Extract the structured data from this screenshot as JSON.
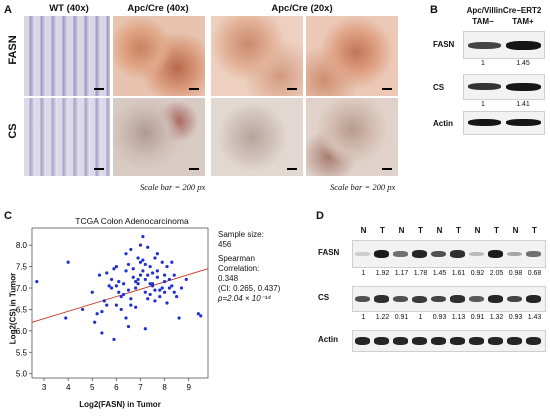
{
  "panel_a": {
    "letter": "A",
    "headers": [
      "WT (40x)",
      "Apc/Cre (40x)",
      "Apc/Cre (20x)"
    ],
    "rows": [
      "FASN",
      "CS"
    ],
    "scale_bar_label": "Scale bar = 200 px"
  },
  "panel_b": {
    "letter": "B",
    "title": "Apc/VillinCre−ERT2",
    "lanes": [
      "TAM−",
      "TAM+"
    ],
    "blots": [
      {
        "label": "FASN",
        "values": [
          "1",
          "1.45"
        ]
      },
      {
        "label": "CS",
        "values": [
          "1",
          "1.41"
        ]
      },
      {
        "label": "Actin",
        "values": []
      }
    ]
  },
  "panel_c": {
    "letter": "C",
    "annotations": {
      "sample_size_label": "Sample size:",
      "sample_size": "456",
      "spearman_label": "Spearman",
      "correlation_label": "Correlation:",
      "rho": "0.348",
      "ci": "(CI: 0.265, 0.437)",
      "p_value": "p=2.04 × 10⁻¹⁴"
    },
    "colors": {
      "points": "#1f2fd1",
      "fit_line": "#c0392b"
    }
  },
  "panel_d": {
    "letter": "D",
    "lanes": [
      "N",
      "T",
      "N",
      "T",
      "N",
      "T",
      "N",
      "T",
      "N",
      "T"
    ],
    "blots": [
      {
        "label": "FASN",
        "values": [
          "1",
          "1.92",
          "1.17",
          "1.78",
          "1.45",
          "1.61",
          "0.92",
          "2.05",
          "0.98",
          "0.68"
        ],
        "intensity": [
          0.12,
          0.95,
          0.55,
          0.9,
          0.7,
          0.85,
          0.2,
          0.95,
          0.3,
          0.55
        ]
      },
      {
        "label": "CS",
        "values": [
          "1",
          "1.22",
          "0.91",
          "1",
          "0.93",
          "1.13",
          "0.91",
          "1.32",
          "0.93",
          "1.43"
        ],
        "intensity": [
          0.7,
          0.85,
          0.7,
          0.8,
          0.75,
          0.85,
          0.65,
          0.9,
          0.75,
          0.9
        ]
      },
      {
        "label": "Actin",
        "values": [],
        "intensity": [
          0.9,
          0.9,
          0.9,
          0.9,
          0.9,
          0.9,
          0.9,
          0.9,
          0.9,
          0.9
        ]
      }
    ]
  },
  "chart_data": {
    "type": "scatter",
    "title": "TCGA Colon Adenocarcinoma",
    "xlabel": "Log2(FASN) in Tumor",
    "ylabel": "Log2(CS) in Tumor",
    "xlim": [
      2.5,
      9.8
    ],
    "ylim": [
      4.9,
      8.4
    ],
    "xticks": [
      "3",
      "4",
      "5",
      "6",
      "7",
      "8",
      "9"
    ],
    "yticks": [
      "5.0",
      "5.5",
      "6.0",
      "6.5",
      "7.0",
      "7.5",
      "8.0"
    ],
    "grid": false,
    "fit_line": [
      [
        2.5,
        6.2
      ],
      [
        9.8,
        7.45
      ]
    ],
    "series": [
      {
        "x": [
          2.7,
          4.0,
          3.9,
          4.6,
          9.4,
          9.5,
          5.4,
          5.9,
          6.5,
          7.2,
          8.6,
          5.0,
          5.3,
          6.0,
          6.6,
          7.1,
          7.7,
          8.3,
          8.9,
          5.6,
          6.2,
          6.8,
          7.4,
          8.0,
          5.8,
          6.4,
          7.0,
          7.6,
          8.2,
          5.2,
          6.1,
          6.9,
          7.5,
          8.1,
          5.5,
          6.3,
          7.3,
          7.9,
          8.5,
          5.7,
          6.7,
          7.2,
          7.8,
          6.0,
          6.6,
          7.4,
          8.0,
          5.9,
          6.5,
          7.1,
          7.7,
          6.2,
          6.8,
          7.6,
          8.4,
          6.4,
          7.0,
          7.3,
          8.2,
          5.1,
          5.4,
          5.8,
          6.1,
          6.5,
          6.9,
          7.2,
          7.5,
          7.8,
          8.1,
          8.4,
          5.6,
          6.0,
          6.3,
          6.7,
          7.0,
          7.4,
          7.7,
          8.0,
          8.3,
          6.6,
          6.9,
          7.1,
          7.3,
          7.6,
          6.8,
          7.2,
          7.5,
          6.4,
          7.9,
          8.7
        ],
        "y": [
          7.15,
          7.6,
          6.3,
          6.5,
          6.4,
          6.35,
          5.95,
          5.8,
          6.1,
          6.05,
          6.3,
          6.9,
          7.3,
          7.5,
          7.9,
          8.2,
          7.8,
          7.6,
          7.2,
          6.6,
          6.8,
          7.0,
          7.1,
          7.3,
          7.2,
          7.4,
          7.6,
          7.7,
          7.0,
          6.4,
          6.9,
          7.2,
          7.35,
          7.5,
          6.7,
          7.1,
          7.3,
          7.0,
          6.8,
          7.05,
          7.25,
          6.9,
          6.95,
          6.6,
          6.75,
          6.85,
          7.15,
          7.45,
          7.55,
          7.65,
          7.4,
          6.5,
          6.55,
          6.7,
          6.9,
          7.8,
          8.0,
          7.95,
          7.2,
          6.2,
          6.45,
          7.0,
          7.15,
          6.95,
          7.1,
          7.2,
          7.05,
          6.8,
          6.65,
          7.3,
          7.35,
          7.05,
          6.85,
          7.45,
          7.3,
          7.5,
          7.25,
          6.9,
          7.05,
          6.6,
          7.7,
          7.4,
          6.75,
          6.95,
          7.15,
          7.55,
          7.1,
          6.3,
          7.6,
          7.0
        ],
        "color": "#1f2fd1"
      }
    ]
  }
}
